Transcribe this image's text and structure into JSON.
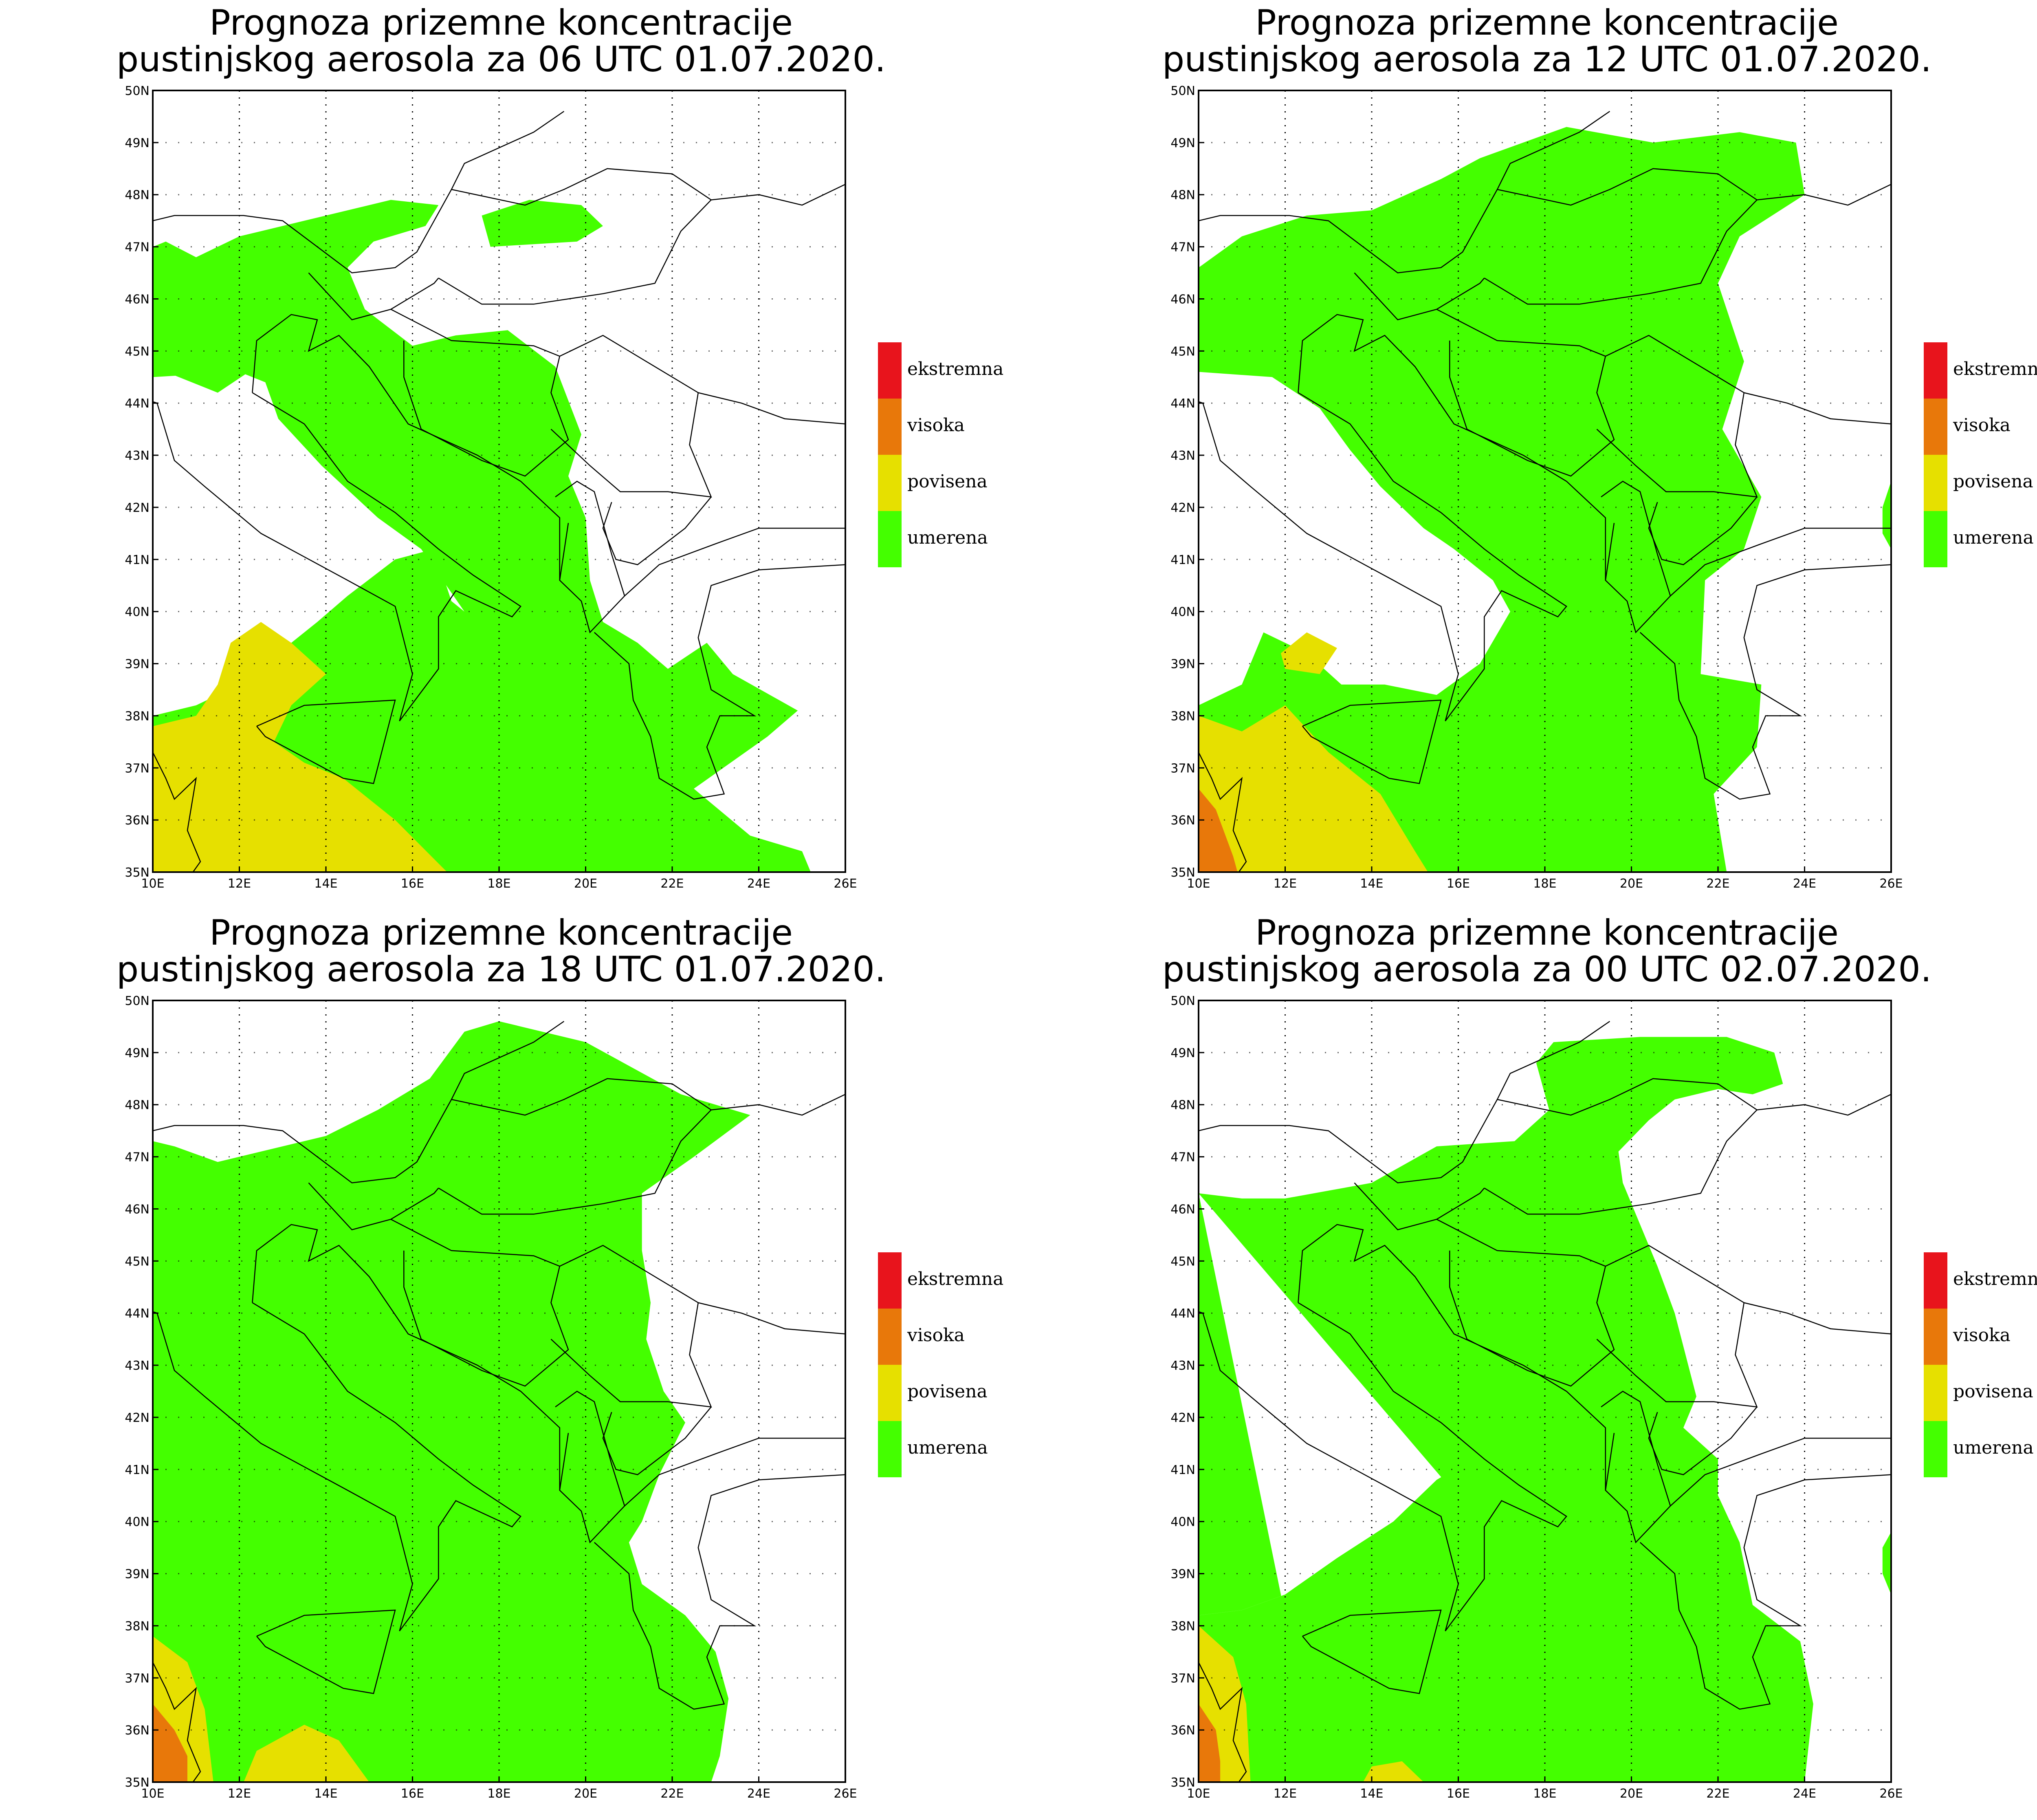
{
  "panels": [
    {
      "title_line1": "Prognoza prizemne koncentracije",
      "title_line2": "pustinjskog aerosola za 06 UTC 01.07.2020."
    },
    {
      "title_line1": "Prognoza prizemne koncentracije",
      "title_line2": "pustinjskog aerosola za 12 UTC 01.07.2020."
    },
    {
      "title_line1": "Prognoza prizemne koncentracije",
      "title_line2": "pustinjskog aerosola za 18 UTC 01.07.2020."
    },
    {
      "title_line1": "Prognoza prizemne koncentracije",
      "title_line2": "pustinjskog aerosola za 00 UTC 02.07.2020."
    }
  ],
  "axes": {
    "lat_labels": [
      "50N",
      "49N",
      "48N",
      "47N",
      "46N",
      "45N",
      "44N",
      "43N",
      "42N",
      "41N",
      "40N",
      "39N",
      "38N",
      "37N",
      "36N",
      "35N"
    ],
    "lon_labels": [
      "10E",
      "12E",
      "14E",
      "16E",
      "18E",
      "20E",
      "22E",
      "24E",
      "26E"
    ],
    "lat_range": [
      35,
      50
    ],
    "lon_range": [
      10,
      26
    ]
  },
  "legend": [
    {
      "label": "ekstremna",
      "color": "#e8141c"
    },
    {
      "label": "visoka",
      "color": "#e8780a"
    },
    {
      "label": "povisena",
      "color": "#e6e000"
    },
    {
      "label": "umerena",
      "color": "#44ff00"
    }
  ],
  "colors": {
    "umerena": "#44ff00",
    "povisena": "#e6e000",
    "visoka": "#e8780a",
    "ekstremna": "#e8141c"
  }
}
